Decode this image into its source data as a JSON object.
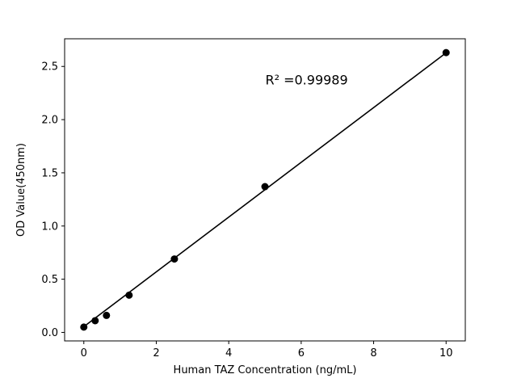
{
  "chart_data": {
    "type": "scatter",
    "xlabel": "Human TAZ Concentration (ng/mL)",
    "ylabel": "OD Value(450nm)",
    "x": [
      0,
      0.3125,
      0.625,
      1.25,
      2.5,
      5,
      10
    ],
    "y": [
      0.05,
      0.11,
      0.16,
      0.35,
      0.69,
      1.37,
      2.63
    ],
    "fit_line": {
      "x": [
        0,
        10
      ],
      "y": [
        0.054,
        2.628
      ]
    },
    "annotation": {
      "text": "R² =0.99989",
      "x": 6.15,
      "y": 2.33
    },
    "xlim": [
      -0.53,
      10.53
    ],
    "ylim": [
      -0.08,
      2.76
    ],
    "xticks": [
      0,
      2,
      4,
      6,
      8,
      10
    ],
    "xtick_labels": [
      "0",
      "2",
      "4",
      "6",
      "8",
      "10"
    ],
    "yticks": [
      0,
      0.5,
      1.0,
      1.5,
      2.0,
      2.5
    ],
    "ytick_labels": [
      "0.0",
      "0.5",
      "1.0",
      "1.5",
      "2.0",
      "2.5"
    ],
    "grid": false,
    "legend": null,
    "marker_color": "#000000",
    "line_color": "#000000",
    "background": "#ffffff"
  }
}
